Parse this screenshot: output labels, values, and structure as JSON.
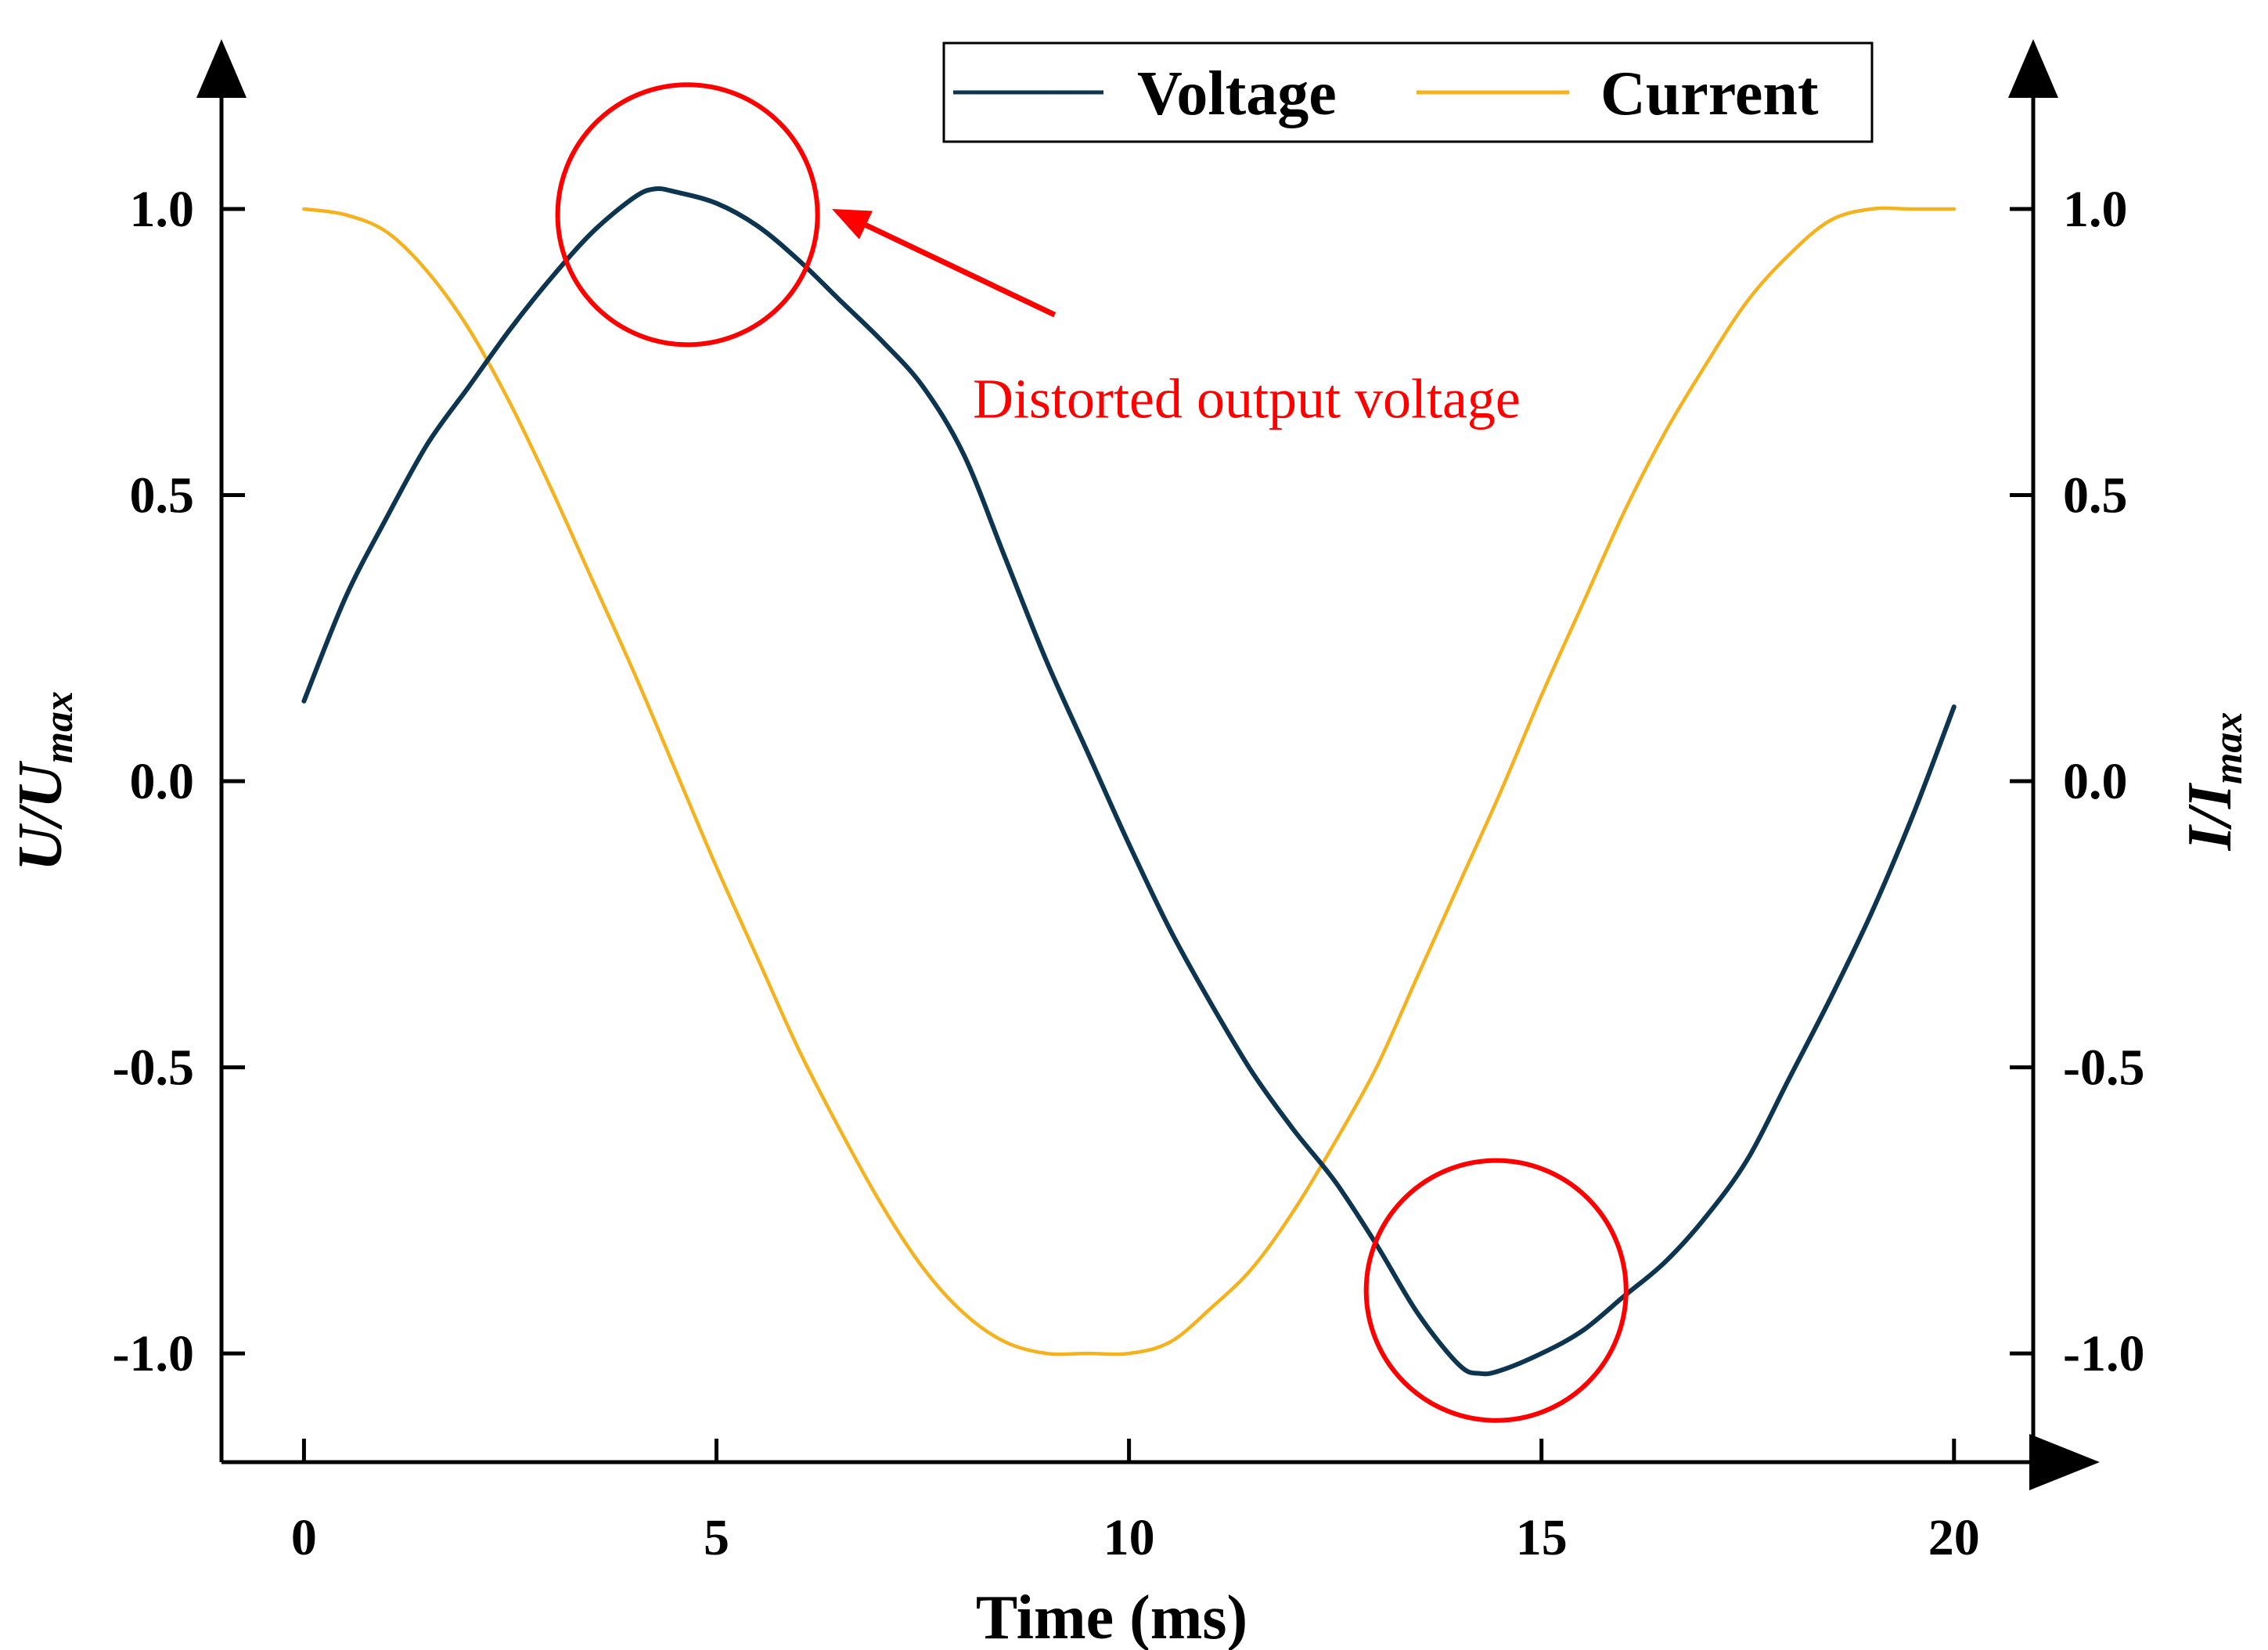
{
  "chart_data": {
    "type": "line",
    "title": "",
    "xlabel": "Time (ms)",
    "ylabel_left": {
      "main": "U/U",
      "sub": "max"
    },
    "ylabel_right": {
      "main": "I/I",
      "sub": "max"
    },
    "xlim": [
      -1,
      20.96
    ],
    "ylim": [
      -1.19,
      1.29
    ],
    "x_ticks": [
      0,
      5,
      10,
      15,
      20
    ],
    "x_tick_labels": [
      "0",
      "5",
      "10",
      "15",
      "20"
    ],
    "y_ticks": [
      1.0,
      0.5,
      0.0,
      -0.5,
      -1.0
    ],
    "y_tick_labels": [
      "1.0",
      "0.5",
      "0.0",
      "-0.5",
      "-1.0"
    ],
    "grid": false,
    "legend_position": "top-right",
    "series": [
      {
        "name": "Voltage",
        "color": "#0d3550",
        "x": [
          0,
          0.5,
          1,
          1.5,
          2,
          2.5,
          3,
          3.5,
          4,
          4.25,
          4.5,
          5,
          5.5,
          6,
          6.5,
          7,
          7.5,
          8,
          8.5,
          9,
          9.5,
          10,
          10.5,
          11,
          11.5,
          12,
          12.5,
          13,
          13.5,
          14,
          14.25,
          14.5,
          15,
          15.5,
          16,
          16.5,
          17,
          17.5,
          18,
          18.5,
          19,
          19.5,
          20
        ],
        "y": [
          0.14,
          0.32,
          0.46,
          0.59,
          0.69,
          0.79,
          0.88,
          0.96,
          1.02,
          1.035,
          1.03,
          1.01,
          0.97,
          0.91,
          0.84,
          0.77,
          0.69,
          0.57,
          0.39,
          0.21,
          0.05,
          -0.11,
          -0.26,
          -0.39,
          -0.51,
          -0.61,
          -0.7,
          -0.81,
          -0.93,
          -1.02,
          -1.035,
          -1.03,
          -1.0,
          -0.96,
          -0.9,
          -0.84,
          -0.76,
          -0.66,
          -0.52,
          -0.38,
          -0.23,
          -0.06,
          0.13
        ]
      },
      {
        "name": "Current",
        "color": "#f5b21f",
        "x": [
          0,
          0.5,
          1,
          1.5,
          2,
          2.5,
          3,
          3.5,
          4,
          4.5,
          5,
          5.5,
          6,
          6.5,
          7,
          7.5,
          8,
          8.5,
          9,
          9.5,
          10,
          10.5,
          11,
          11.5,
          12,
          12.5,
          13,
          13.5,
          14,
          14.5,
          15,
          15.5,
          16,
          16.5,
          17,
          17.5,
          18,
          18.5,
          19,
          19.5,
          20
        ],
        "y": [
          1.0,
          0.99,
          0.96,
          0.89,
          0.79,
          0.66,
          0.51,
          0.35,
          0.19,
          0.02,
          -0.15,
          -0.31,
          -0.47,
          -0.61,
          -0.74,
          -0.85,
          -0.93,
          -0.98,
          -1.0,
          -1.0,
          -1.0,
          -0.98,
          -0.92,
          -0.85,
          -0.75,
          -0.63,
          -0.5,
          -0.34,
          -0.18,
          -0.02,
          0.15,
          0.31,
          0.47,
          0.61,
          0.73,
          0.84,
          0.92,
          0.98,
          1.0,
          1.0,
          1.0
        ]
      }
    ],
    "annotations": [
      {
        "text": "Distorted output voltage",
        "color": "#ff0000",
        "arrow_to_x": 6.4,
        "arrow_to_y": 1.0,
        "text_x": 8.1,
        "text_y": 0.67
      }
    ],
    "highlight_circles": [
      {
        "label": "voltage-peak",
        "color": "#ff0000",
        "cx": 4.65,
        "cy": 0.99,
        "r_x_units": 1.5
      },
      {
        "label": "voltage-trough",
        "color": "#ff0000",
        "cx": 14.45,
        "cy": -0.89,
        "r_x_units": 1.5
      }
    ]
  }
}
